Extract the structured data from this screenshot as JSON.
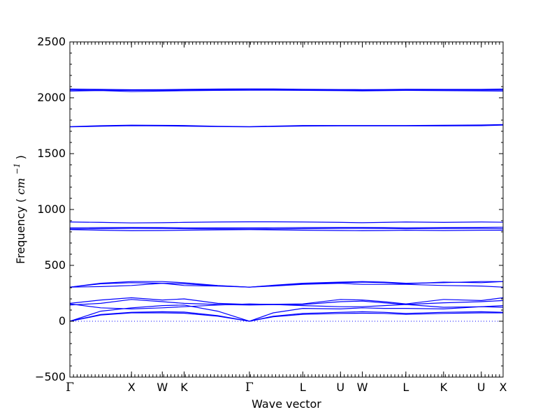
{
  "chart_data": {
    "type": "line",
    "title": "",
    "xlabel": "Wave vector",
    "ylabel": "Frequency",
    "ylabel_unit": "cm",
    "ylabel_exp": "−1",
    "ylim": [
      -500,
      2500
    ],
    "yticks": [
      -500,
      0,
      500,
      1000,
      1500,
      2000,
      2500
    ],
    "ytick_labels": [
      "−500",
      "0",
      "500",
      "1000",
      "1500",
      "2000",
      "2500"
    ],
    "grid": false,
    "line_color": "#0000ff",
    "zero_line_style": "dotted",
    "xticks": [
      {
        "label": "Γ",
        "pos": 0.0
      },
      {
        "label": "X",
        "pos": 1.0
      },
      {
        "label": "W",
        "pos": 1.5
      },
      {
        "label": "K",
        "pos": 1.854
      },
      {
        "label": "Γ",
        "pos": 2.914
      },
      {
        "label": "L",
        "pos": 3.78
      },
      {
        "label": "U",
        "pos": 4.392
      },
      {
        "label": "W",
        "pos": 4.746
      },
      {
        "label": "L",
        "pos": 5.453
      },
      {
        "label": "K",
        "pos": 6.065
      },
      {
        "label": "U",
        "pos": 6.677
      },
      {
        "label": "X",
        "pos": 7.031
      }
    ],
    "series": [
      {
        "x": [
          0,
          0.5,
          1.0,
          1.5,
          1.854,
          2.4,
          2.914,
          3.3,
          3.78,
          4.392,
          4.746,
          5.1,
          5.453,
          6.065,
          6.677,
          7.031
        ],
        "values": [
          0,
          55,
          75,
          75,
          72,
          45,
          0,
          40,
          62,
          70,
          72,
          70,
          62,
          70,
          75,
          75
        ]
      },
      {
        "x": [
          0,
          0.5,
          1.0,
          1.5,
          1.854,
          2.4,
          2.914,
          3.3,
          3.78,
          4.392,
          4.746,
          5.1,
          5.453,
          6.065,
          6.677,
          7.031
        ],
        "values": [
          0,
          60,
          80,
          85,
          82,
          50,
          0,
          45,
          70,
          80,
          85,
          80,
          70,
          80,
          85,
          80
        ]
      },
      {
        "x": [
          0,
          0.5,
          1.0,
          1.5,
          1.854,
          2.4,
          2.914,
          3.3,
          3.78,
          4.392,
          4.746,
          5.1,
          5.453,
          6.065,
          6.677,
          7.031
        ],
        "values": [
          0,
          90,
          120,
          140,
          145,
          90,
          0,
          75,
          115,
          110,
          120,
          115,
          115,
          110,
          130,
          125
        ]
      },
      {
        "x": [
          0,
          0.5,
          1.0,
          1.5,
          1.854,
          2.4,
          2.914,
          3.3,
          3.78,
          4.392,
          4.746,
          5.1,
          5.453,
          6.065,
          6.677,
          7.031
        ],
        "values": [
          155,
          120,
          110,
          120,
          130,
          145,
          155,
          150,
          140,
          130,
          130,
          140,
          150,
          125,
          130,
          140
        ]
      },
      {
        "x": [
          0,
          0.5,
          1.0,
          1.5,
          1.854,
          2.4,
          2.914,
          3.3,
          3.78,
          4.392,
          4.746,
          5.1,
          5.453,
          6.065,
          6.677,
          7.031
        ],
        "values": [
          145,
          160,
          195,
          175,
          160,
          150,
          145,
          148,
          150,
          175,
          180,
          165,
          150,
          165,
          175,
          185
        ]
      },
      {
        "x": [
          0,
          0.5,
          1.0,
          1.5,
          1.854,
          2.4,
          2.914,
          3.3,
          3.78,
          4.392,
          4.746,
          5.1,
          5.453,
          6.065,
          6.677,
          7.031
        ],
        "values": [
          160,
          190,
          210,
          190,
          200,
          160,
          150,
          152,
          155,
          195,
          190,
          175,
          155,
          195,
          185,
          210
        ]
      },
      {
        "x": [
          0,
          0.5,
          1.0,
          1.5,
          1.854,
          2.4,
          2.914,
          3.3,
          3.78,
          4.392,
          4.746,
          5.1,
          5.453,
          6.065,
          6.677,
          7.031
        ],
        "values": [
          305,
          310,
          320,
          340,
          320,
          315,
          305,
          315,
          330,
          340,
          330,
          330,
          330,
          320,
          315,
          305
        ]
      },
      {
        "x": [
          0,
          0.5,
          1.0,
          1.5,
          1.854,
          2.4,
          2.914,
          3.3,
          3.78,
          4.392,
          4.746,
          5.1,
          5.453,
          6.065,
          6.677,
          7.031
        ],
        "values": [
          305,
          340,
          355,
          355,
          345,
          320,
          305,
          320,
          335,
          345,
          350,
          345,
          335,
          350,
          345,
          355
        ]
      },
      {
        "x": [
          0,
          0.5,
          1.0,
          1.5,
          1.854,
          2.4,
          2.914,
          3.3,
          3.78,
          4.392,
          4.746,
          5.1,
          5.453,
          6.065,
          6.677,
          7.031
        ],
        "values": [
          305,
          335,
          345,
          340,
          335,
          318,
          305,
          322,
          340,
          350,
          355,
          350,
          340,
          345,
          355,
          355
        ]
      },
      {
        "x": [
          0,
          0.5,
          1.0,
          1.5,
          1.854,
          2.4,
          2.914,
          3.3,
          3.78,
          4.392,
          4.746,
          5.1,
          5.453,
          6.065,
          6.677,
          7.031
        ],
        "values": [
          820,
          815,
          810,
          812,
          815,
          818,
          820,
          818,
          815,
          812,
          810,
          812,
          815,
          812,
          815,
          815
        ]
      },
      {
        "x": [
          0,
          0.5,
          1.0,
          1.5,
          1.854,
          2.4,
          2.914,
          3.3,
          3.78,
          4.392,
          4.746,
          5.1,
          5.453,
          6.065,
          6.677,
          7.031
        ],
        "values": [
          825,
          828,
          830,
          830,
          828,
          826,
          825,
          826,
          828,
          830,
          830,
          830,
          828,
          830,
          830,
          828
        ]
      },
      {
        "x": [
          0,
          0.5,
          1.0,
          1.5,
          1.854,
          2.4,
          2.914,
          3.3,
          3.78,
          4.392,
          4.746,
          5.1,
          5.453,
          6.065,
          6.677,
          7.031
        ],
        "values": [
          835,
          838,
          840,
          838,
          836,
          835,
          835,
          836,
          838,
          840,
          840,
          838,
          836,
          838,
          840,
          842
        ]
      },
      {
        "x": [
          0,
          0.5,
          1.0,
          1.5,
          1.854,
          2.4,
          2.914,
          3.3,
          3.78,
          4.392,
          4.746,
          5.1,
          5.453,
          6.065,
          6.677,
          7.031
        ],
        "values": [
          888,
          885,
          880,
          882,
          885,
          888,
          890,
          890,
          888,
          885,
          882,
          885,
          888,
          885,
          888,
          886
        ]
      },
      {
        "x": [
          0,
          0.5,
          1.0,
          1.5,
          1.854,
          2.4,
          2.914,
          3.3,
          3.78,
          4.392,
          4.746,
          5.1,
          5.453,
          6.065,
          6.677,
          7.031
        ],
        "values": [
          1740,
          1745,
          1750,
          1748,
          1746,
          1742,
          1740,
          1743,
          1747,
          1748,
          1748,
          1748,
          1748,
          1748,
          1750,
          1755
        ]
      },
      {
        "x": [
          0,
          0.5,
          1.0,
          1.5,
          1.854,
          2.4,
          2.914,
          3.3,
          3.78,
          4.392,
          4.746,
          5.1,
          5.453,
          6.065,
          6.677,
          7.031
        ],
        "values": [
          1742,
          1750,
          1755,
          1753,
          1752,
          1745,
          1742,
          1746,
          1752,
          1752,
          1752,
          1752,
          1752,
          1754,
          1756,
          1760
        ]
      },
      {
        "x": [
          0,
          0.5,
          1.0,
          1.5,
          1.854,
          2.4,
          2.914,
          3.3,
          3.78,
          4.392,
          4.746,
          5.1,
          5.453,
          6.065,
          6.677,
          7.031
        ],
        "values": [
          2060,
          2065,
          2055,
          2060,
          2063,
          2066,
          2068,
          2068,
          2066,
          2064,
          2062,
          2064,
          2066,
          2064,
          2062,
          2060
        ]
      },
      {
        "x": [
          0,
          0.5,
          1.0,
          1.5,
          1.854,
          2.4,
          2.914,
          3.3,
          3.78,
          4.392,
          4.746,
          5.1,
          5.453,
          6.065,
          6.677,
          7.031
        ],
        "values": [
          2070,
          2068,
          2066,
          2068,
          2070,
          2072,
          2072,
          2072,
          2070,
          2068,
          2068,
          2068,
          2070,
          2070,
          2070,
          2070
        ]
      },
      {
        "x": [
          0,
          0.5,
          1.0,
          1.5,
          1.854,
          2.4,
          2.914,
          3.3,
          3.78,
          4.392,
          4.746,
          5.1,
          5.453,
          6.065,
          6.677,
          7.031
        ],
        "values": [
          2078,
          2075,
          2072,
          2073,
          2075,
          2078,
          2080,
          2079,
          2076,
          2074,
          2073,
          2074,
          2076,
          2075,
          2075,
          2078
        ]
      }
    ]
  }
}
